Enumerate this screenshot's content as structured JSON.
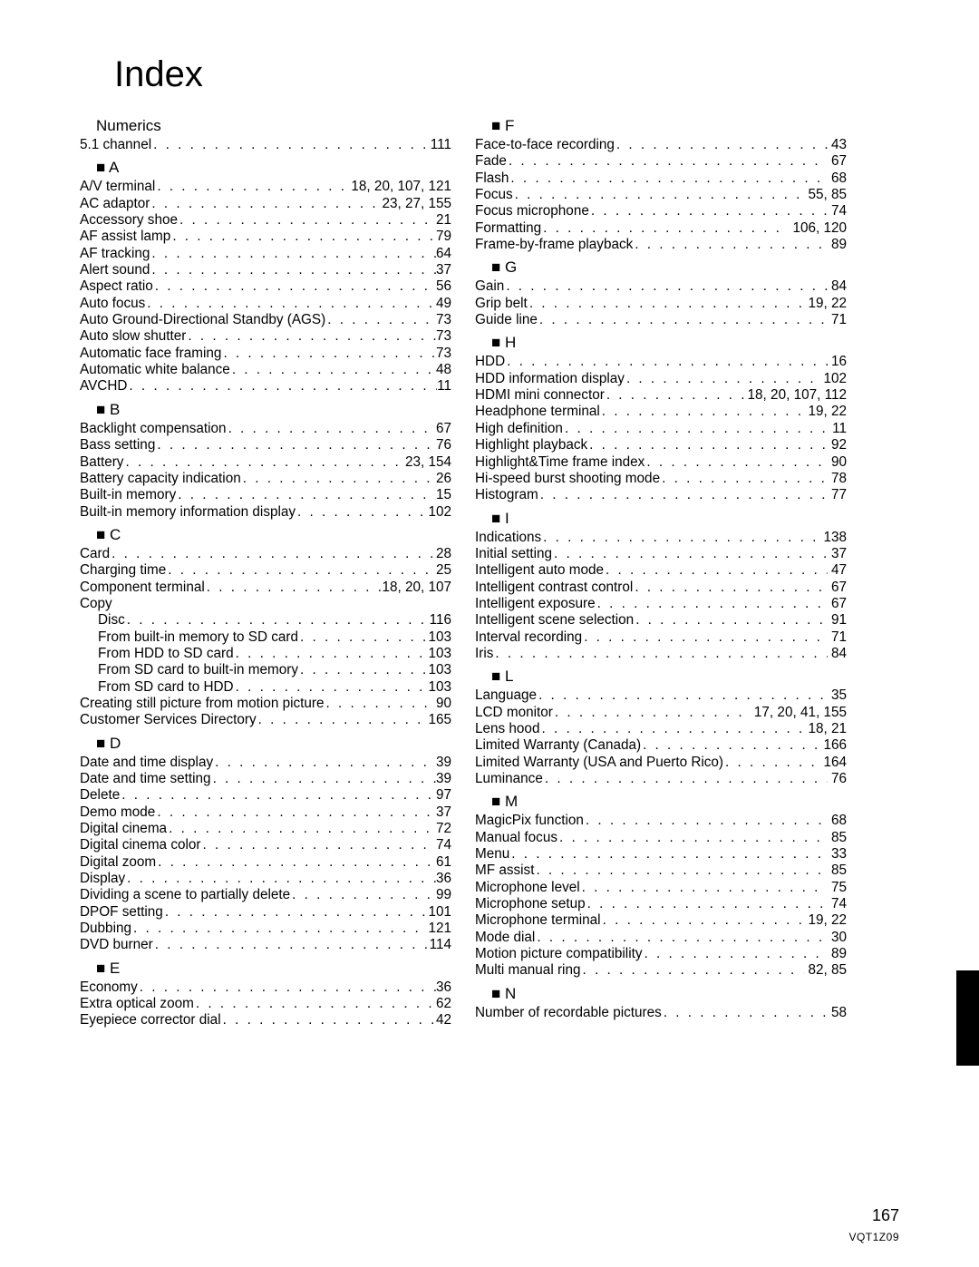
{
  "title": "Index",
  "page_number": "167",
  "doc_id": "VQT1Z09",
  "left": [
    {
      "type": "head",
      "text": "Numerics"
    },
    {
      "type": "entry",
      "label": "5.1 channel",
      "pages": "111"
    },
    {
      "type": "head",
      "text": "■ A"
    },
    {
      "type": "entry",
      "label": "A/V terminal",
      "pages": "18, 20, 107, 121"
    },
    {
      "type": "entry",
      "label": "AC adaptor",
      "pages": "23, 27, 155"
    },
    {
      "type": "entry",
      "label": "Accessory shoe",
      "pages": "21"
    },
    {
      "type": "entry",
      "label": "AF assist lamp",
      "pages": "79"
    },
    {
      "type": "entry",
      "label": "AF tracking",
      "pages": "64"
    },
    {
      "type": "entry",
      "label": "Alert sound",
      "pages": "37"
    },
    {
      "type": "entry",
      "label": "Aspect ratio",
      "pages": "56"
    },
    {
      "type": "entry",
      "label": "Auto focus",
      "pages": "49"
    },
    {
      "type": "entry",
      "label": "Auto Ground-Directional Standby (AGS)",
      "pages": "73"
    },
    {
      "type": "entry",
      "label": "Auto slow shutter",
      "pages": "73"
    },
    {
      "type": "entry",
      "label": "Automatic face framing",
      "pages": "73"
    },
    {
      "type": "entry",
      "label": "Automatic white balance",
      "pages": "48"
    },
    {
      "type": "entry",
      "label": "AVCHD",
      "pages": "11"
    },
    {
      "type": "head",
      "text": "■ B"
    },
    {
      "type": "entry",
      "label": "Backlight compensation",
      "pages": "67"
    },
    {
      "type": "entry",
      "label": "Bass setting",
      "pages": "76"
    },
    {
      "type": "entry",
      "label": "Battery",
      "pages": "23, 154"
    },
    {
      "type": "entry",
      "label": "Battery capacity indication",
      "pages": "26"
    },
    {
      "type": "entry",
      "label": "Built-in memory",
      "pages": "15"
    },
    {
      "type": "entry",
      "label": "Built-in memory information display",
      "pages": "102"
    },
    {
      "type": "head",
      "text": "■ C"
    },
    {
      "type": "entry",
      "label": "Card",
      "pages": "28"
    },
    {
      "type": "entry",
      "label": "Charging time",
      "pages": "25"
    },
    {
      "type": "entry",
      "label": "Component terminal",
      "pages": "18, 20, 107"
    },
    {
      "type": "label",
      "label": "Copy"
    },
    {
      "type": "entry",
      "indent": true,
      "label": "Disc",
      "pages": "116"
    },
    {
      "type": "entry",
      "indent": true,
      "label": "From built-in memory to SD card",
      "pages": "103"
    },
    {
      "type": "entry",
      "indent": true,
      "label": "From HDD to SD card",
      "pages": "103"
    },
    {
      "type": "entry",
      "indent": true,
      "label": "From SD card to built-in memory",
      "pages": "103"
    },
    {
      "type": "entry",
      "indent": true,
      "label": "From SD card to HDD",
      "pages": "103"
    },
    {
      "type": "entry",
      "label": "Creating still picture from motion picture",
      "pages": "90"
    },
    {
      "type": "entry",
      "label": "Customer Services Directory",
      "pages": "165"
    },
    {
      "type": "head",
      "text": "■ D"
    },
    {
      "type": "entry",
      "label": "Date and time display",
      "pages": "39"
    },
    {
      "type": "entry",
      "label": "Date and time setting",
      "pages": "39"
    },
    {
      "type": "entry",
      "label": "Delete",
      "pages": "97"
    },
    {
      "type": "entry",
      "label": "Demo mode",
      "pages": "37"
    },
    {
      "type": "entry",
      "label": "Digital cinema",
      "pages": "72"
    },
    {
      "type": "entry",
      "label": "Digital cinema color",
      "pages": "74"
    },
    {
      "type": "entry",
      "label": "Digital zoom",
      "pages": "61"
    },
    {
      "type": "entry",
      "label": "Display",
      "pages": "36"
    },
    {
      "type": "entry",
      "label": "Dividing a scene to partially delete",
      "pages": "99"
    },
    {
      "type": "entry",
      "label": "DPOF setting",
      "pages": "101"
    },
    {
      "type": "entry",
      "label": "Dubbing",
      "pages": "121"
    },
    {
      "type": "entry",
      "label": "DVD burner",
      "pages": "114"
    },
    {
      "type": "head",
      "text": "■ E"
    },
    {
      "type": "entry",
      "label": "Economy",
      "pages": "36"
    },
    {
      "type": "entry",
      "label": "Extra optical zoom",
      "pages": "62"
    },
    {
      "type": "entry",
      "label": "Eyepiece corrector dial",
      "pages": "42"
    }
  ],
  "right": [
    {
      "type": "head",
      "text": "■ F"
    },
    {
      "type": "entry",
      "label": "Face-to-face recording",
      "pages": " 43"
    },
    {
      "type": "entry",
      "label": "Fade",
      "pages": " 67"
    },
    {
      "type": "entry",
      "label": "Flash",
      "pages": " 68"
    },
    {
      "type": "entry",
      "label": "Focus",
      "pages": " 55, 85"
    },
    {
      "type": "entry",
      "label": "Focus microphone",
      "pages": " 74"
    },
    {
      "type": "entry",
      "label": "Formatting",
      "pages": " 106, 120"
    },
    {
      "type": "entry",
      "label": "Frame-by-frame playback",
      "pages": " 89"
    },
    {
      "type": "head",
      "text": "■ G"
    },
    {
      "type": "entry",
      "label": "Gain",
      "pages": " 84"
    },
    {
      "type": "entry",
      "label": "Grip belt",
      "pages": " 19, 22"
    },
    {
      "type": "entry",
      "label": "Guide line",
      "pages": " 71"
    },
    {
      "type": "head",
      "text": "■ H"
    },
    {
      "type": "entry",
      "label": "HDD",
      "pages": " 16"
    },
    {
      "type": "entry",
      "label": "HDD information display",
      "pages": " 102"
    },
    {
      "type": "entry",
      "label": "HDMI mini connector",
      "pages": " 18, 20, 107, 112"
    },
    {
      "type": "entry",
      "label": "Headphone terminal",
      "pages": " 19, 22"
    },
    {
      "type": "entry",
      "label": "High definition",
      "pages": " 11"
    },
    {
      "type": "entry",
      "label": "Highlight playback",
      "pages": " 92"
    },
    {
      "type": "entry",
      "label": "Highlight&Time frame index",
      "pages": " 90"
    },
    {
      "type": "entry",
      "label": "Hi-speed burst shooting mode",
      "pages": " 78"
    },
    {
      "type": "entry",
      "label": "Histogram",
      "pages": " 77"
    },
    {
      "type": "head",
      "text": "■ I"
    },
    {
      "type": "entry",
      "label": "Indications",
      "pages": " 138"
    },
    {
      "type": "entry",
      "label": "Initial setting",
      "pages": " 37"
    },
    {
      "type": "entry",
      "label": "Intelligent auto mode",
      "pages": " 47"
    },
    {
      "type": "entry",
      "label": "Intelligent contrast control",
      "pages": " 67"
    },
    {
      "type": "entry",
      "label": "Intelligent exposure",
      "pages": " 67"
    },
    {
      "type": "entry",
      "label": "Intelligent scene selection",
      "pages": " 91"
    },
    {
      "type": "entry",
      "label": "Interval recording",
      "pages": " 71"
    },
    {
      "type": "entry",
      "label": "Iris",
      "pages": " 84"
    },
    {
      "type": "head",
      "text": "■ L"
    },
    {
      "type": "entry",
      "label": "Language",
      "pages": " 35"
    },
    {
      "type": "entry",
      "label": "LCD monitor",
      "pages": " 17, 20, 41, 155"
    },
    {
      "type": "entry",
      "label": "Lens hood",
      "pages": " 18, 21"
    },
    {
      "type": "entry",
      "label": "Limited Warranty (Canada)",
      "pages": " 166"
    },
    {
      "type": "entry",
      "label": "Limited Warranty (USA and Puerto Rico)",
      "pages": " 164"
    },
    {
      "type": "entry",
      "label": "Luminance",
      "pages": " 76"
    },
    {
      "type": "head",
      "text": "■ M"
    },
    {
      "type": "entry",
      "label": "MagicPix function",
      "pages": " 68"
    },
    {
      "type": "entry",
      "label": "Manual focus",
      "pages": " 85"
    },
    {
      "type": "entry",
      "label": "Menu",
      "pages": " 33"
    },
    {
      "type": "entry",
      "label": "MF assist",
      "pages": " 85"
    },
    {
      "type": "entry",
      "label": "Microphone level",
      "pages": " 75"
    },
    {
      "type": "entry",
      "label": "Microphone setup",
      "pages": " 74"
    },
    {
      "type": "entry",
      "label": "Microphone terminal",
      "pages": " 19, 22"
    },
    {
      "type": "entry",
      "label": "Mode dial",
      "pages": " 30"
    },
    {
      "type": "entry",
      "label": "Motion picture compatibility",
      "pages": " 89"
    },
    {
      "type": "entry",
      "label": "Multi manual ring",
      "pages": " 82, 85"
    },
    {
      "type": "head",
      "text": "■ N"
    },
    {
      "type": "entry",
      "label": "Number of recordable pictures",
      "pages": " 58"
    }
  ]
}
